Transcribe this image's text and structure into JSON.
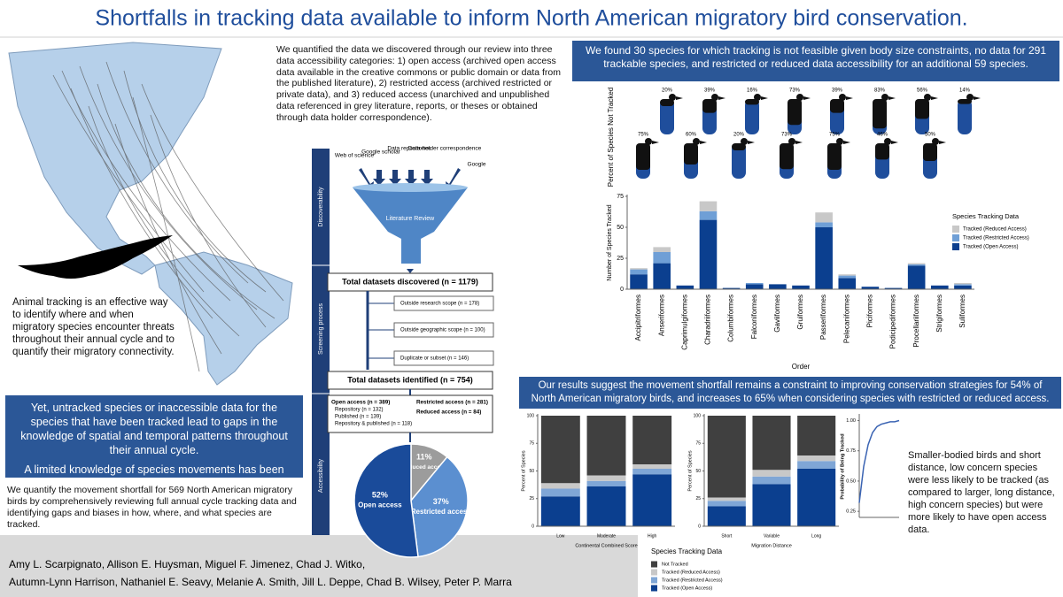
{
  "title": "Shortfalls in tracking data available to inform North American migratory bird conservation.",
  "left": {
    "intro": "Animal tracking is an effective way to identify where and when migratory species encounter threats throughout their annual cycle and to quantify their migratory connectivity.",
    "box": [
      "Yet, untracked species or inaccessible data for the species that have been tracked lead to gaps in the knowledge of spatial and temporal patterns throughout their annual cycle.",
      "A limited knowledge of species movements has been termed the “movement shortfall”."
    ],
    "summary": "We quantify the movement shortfall for 569 North American migratory birds by comprehensively reviewing full annual cycle tracking data and identifying gaps and biases in how, where, and what species are tracked."
  },
  "methods": "We quantified the data we discovered through our review into three data accessibility categories: 1) open access (archived open access data available in the creative commons or public domain or data from the published literature), 2) restricted access (archived restricted or private data), and 3) reduced access (unarchived and unpublished data referenced in grey literature, reports, or theses or obtained through data holder correspondence).",
  "flow": {
    "stages": [
      "Discoverability",
      "Screening process",
      "Accessibility"
    ],
    "sources": [
      "Web of science",
      "Google scholar",
      "Data repositories",
      "Data-holder correspondence",
      "Google"
    ],
    "funnel": "Literature Review",
    "discovered": "Total datasets discovered (n = 1179)",
    "exclusions": [
      "Outside research scope (n = 178)",
      "Outside geographic scope (n = 100)",
      "Duplicate or subset (n = 146)"
    ],
    "identified": "Total datasets identified (n = 754)",
    "open": [
      "Open access (n = 389)",
      "Repository (n = 132)",
      "Published (n = 139)",
      "Repository & published (n = 118)"
    ],
    "restricted": "Restricted access (n = 281)",
    "reduced": "Reduced access (n = 84)"
  },
  "results": {
    "header": "We found 30 species for which tracking is not feasible given body size constraints, no data for 291 trackable species, and restricted or reduced data accessibility for an additional 59 species.",
    "box": "Our results suggest the movement shortfall remains a constraint to improving conservation strategies for 54% of North American migratory birds, and increases to 65% when considering species with restricted or reduced access.",
    "curve_text": "Smaller-bodied birds and short distance, low concern species were less likely to be tracked (as compared to larger, long distance, high concern species) but were more likely to have open access data."
  },
  "chart_data": [
    {
      "type": "pictogram",
      "y_label": "Percent of Species Not Tracked",
      "values": [
        20,
        39,
        16,
        73,
        39,
        83,
        56,
        14,
        75,
        60,
        20,
        73,
        75,
        46,
        50
      ],
      "value_labels": [
        "20%",
        "39%",
        "16%",
        "73%",
        "39%",
        "83%",
        "56%",
        "14%",
        "75%",
        "60%",
        "20%",
        "73%",
        "75%",
        "46%",
        "50%"
      ],
      "colors": [
        "#111111",
        "#1f4e9c"
      ]
    },
    {
      "type": "stacked",
      "x_label": "Order",
      "y_label": "Number of Species Tracked",
      "legend_title": "Species Tracking Data",
      "categories": [
        "Accipitriformes",
        "Anseriformes",
        "Caprimulgiformes",
        "Charadriiformes",
        "Columbiformes",
        "Falconiformes",
        "Gaviiformes",
        "Gruiformes",
        "Passeriformes",
        "Pelecaniformes",
        "Piciformes",
        "Podicipediformes",
        "Procellariiformes",
        "Strigiformes",
        "Suliformes"
      ],
      "series": [
        {
          "name": "Tracked (Open Access)",
          "color": "#0b3f8f",
          "values": [
            12,
            21,
            3,
            56,
            1,
            4,
            4,
            3,
            50,
            9,
            2,
            1,
            19,
            3,
            3
          ]
        },
        {
          "name": "Tracked (Restricted Access)",
          "color": "#6f9fd6",
          "values": [
            4,
            9,
            0,
            7,
            0,
            1,
            0,
            0,
            4,
            2,
            0,
            0,
            1,
            0,
            1
          ]
        },
        {
          "name": "Tracked (Reduced Access)",
          "color": "#c8c8c8",
          "values": [
            1,
            4,
            0,
            8,
            0,
            0,
            0,
            0,
            8,
            1,
            0,
            0,
            1,
            0,
            1
          ]
        }
      ],
      "ylim": [
        0,
        75
      ],
      "yticks": [
        0,
        25,
        50,
        75
      ],
      "legend": "right"
    },
    {
      "type": "pie",
      "categories": [
        "Reduced access",
        "Restricted access",
        "Open access"
      ],
      "values": [
        11,
        37,
        52
      ],
      "value_labels": [
        "11%",
        "37%",
        "52%"
      ],
      "colors": [
        "#9c9c9c",
        "#5b8fd0",
        "#1a4b9a"
      ]
    },
    {
      "type": "stacked",
      "x_label": "Continental Combined Score",
      "y_label": "Percent of Species",
      "legend_title": "Species Tracking Data",
      "categories": [
        "Low",
        "Moderate",
        "High"
      ],
      "series": [
        {
          "name": "Tracked (Open Access)",
          "color": "#0b3f8f",
          "values": [
            27,
            36,
            47
          ]
        },
        {
          "name": "Tracked (Restricted Access)",
          "color": "#7fa6d6",
          "values": [
            7,
            5,
            5
          ]
        },
        {
          "name": "Tracked (Reduced Access)",
          "color": "#c8c8c8",
          "values": [
            5,
            5,
            4
          ]
        },
        {
          "name": "Not Tracked",
          "color": "#404040",
          "values": [
            61,
            54,
            44
          ]
        }
      ],
      "ylim": [
        0,
        100
      ],
      "yticks": [
        0,
        25,
        50,
        75,
        100
      ],
      "legend": "bottom"
    },
    {
      "type": "stacked",
      "x_label": "Migration Distance",
      "y_label": "Percent of Species",
      "categories": [
        "Short",
        "Variable",
        "Long"
      ],
      "series": [
        {
          "color": "#0b3f8f",
          "values": [
            18,
            38,
            52
          ]
        },
        {
          "color": "#7fa6d6",
          "values": [
            5,
            7,
            7
          ]
        },
        {
          "color": "#c8c8c8",
          "values": [
            3,
            6,
            5
          ]
        },
        {
          "color": "#404040",
          "values": [
            74,
            49,
            36
          ]
        }
      ],
      "ylim": [
        0,
        100
      ],
      "yticks": [
        0,
        25,
        50,
        75,
        100
      ]
    },
    {
      "type": "line",
      "y_label": "Probability of Being Tracked",
      "color": "#3b64b3",
      "categories": [
        null,
        null,
        null,
        null,
        null,
        null,
        null,
        null,
        null,
        null
      ],
      "values": [
        0.32,
        0.62,
        0.8,
        0.9,
        0.95,
        0.97,
        0.98,
        0.99,
        0.99,
        1
      ],
      "ylim": [
        0.2,
        1.04
      ],
      "yticks": [
        0.25,
        {
          "value": 0.5,
          "label": "0.50"
        },
        0.75,
        {
          "value": 1,
          "label": "1.00"
        }
      ]
    }
  ],
  "authors": [
    "Amy L. Scarpignato, Allison E. Huysman, Miguel F. Jimenez, Chad J. Witko,",
    "Autumn-Lynn Harrison, Nathaniel E. Seavy, Melanie A. Smith, Jill L. Deppe, Chad B. Wilsey, Peter P. Marra"
  ]
}
